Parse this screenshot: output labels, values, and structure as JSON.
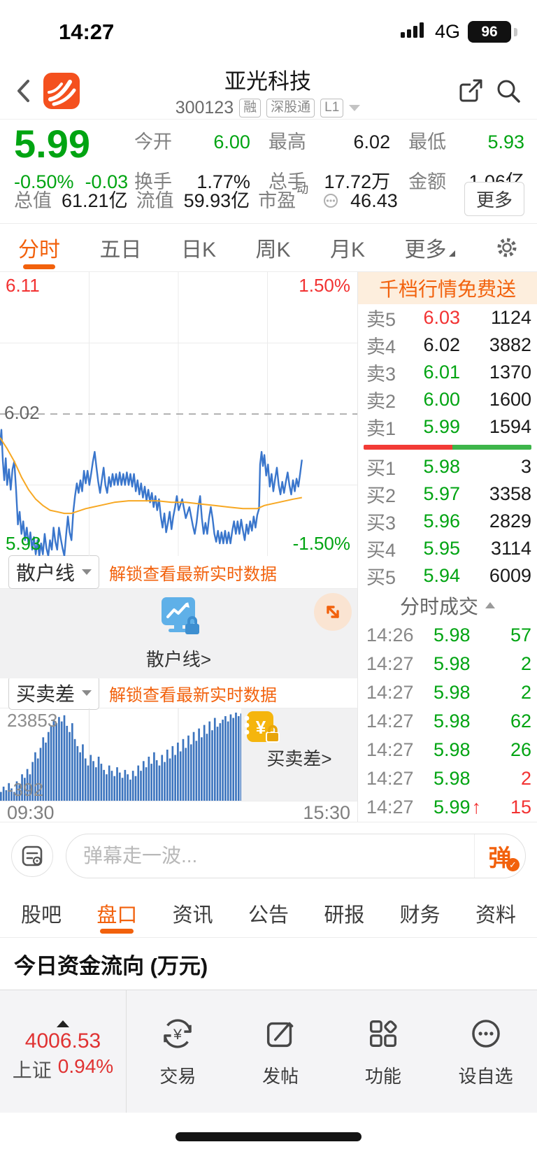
{
  "colors": {
    "up_red": "#f23232",
    "down_green": "#00a412",
    "accent_orange": "#f2610c",
    "line_blue": "#3a76cc",
    "avg_yellow": "#f7a823",
    "bar_blue": "#3c74be"
  },
  "status_bar": {
    "time": "14:27",
    "network": "4G",
    "battery": "96"
  },
  "header": {
    "title": "亚光科技",
    "code": "300123",
    "badges": [
      "融",
      "深股通",
      "L1"
    ]
  },
  "quote": {
    "price": "5.99",
    "change_pct": "-0.50%",
    "change_abs": "-0.03",
    "stats": [
      {
        "label": "今开",
        "value": "6.00"
      },
      {
        "label": "最高",
        "value": "6.02"
      },
      {
        "label": "最低",
        "value": "5.93"
      },
      {
        "label": "换手",
        "value": "1.77%"
      },
      {
        "label": "总手",
        "value": "17.72万"
      },
      {
        "label": "金额",
        "value": "1.06亿"
      }
    ],
    "row3": [
      {
        "label": "总值",
        "value": "61.21亿"
      },
      {
        "label": "流值",
        "value": "59.93亿"
      },
      {
        "label": "市盈",
        "sup": "动",
        "value": "46.43"
      }
    ],
    "more_label": "更多"
  },
  "ktabs": {
    "items": [
      "分时",
      "五日",
      "日K",
      "周K",
      "月K",
      "更多"
    ],
    "active": "分时"
  },
  "chart_data": [
    {
      "type": "line",
      "name": "timeshare",
      "ylim": [
        5.93,
        6.11
      ],
      "prev_close": 6.02,
      "labels": {
        "top_left": "6.11",
        "top_right": "1.50%",
        "mid_left": "6.02",
        "bottom_left": "5.93",
        "bottom_right": "-1.50%"
      },
      "x_axis": [
        "09:30",
        "15:30"
      ],
      "grid": true,
      "series": [
        {
          "name": "price",
          "color": "#3a76cc",
          "points": [
            [
              0,
              6.0
            ],
            [
              0.004,
              6.01
            ],
            [
              0.008,
              5.99
            ],
            [
              0.012,
              5.978
            ],
            [
              0.016,
              5.992
            ],
            [
              0.02,
              5.975
            ],
            [
              0.025,
              5.985
            ],
            [
              0.03,
              5.972
            ],
            [
              0.035,
              5.985
            ],
            [
              0.04,
              5.99
            ],
            [
              0.045,
              5.972
            ],
            [
              0.05,
              5.95
            ],
            [
              0.055,
              5.958
            ],
            [
              0.06,
              5.944
            ],
            [
              0.065,
              5.952
            ],
            [
              0.07,
              5.94
            ],
            [
              0.075,
              5.948
            ],
            [
              0.08,
              5.937
            ],
            [
              0.085,
              5.945
            ],
            [
              0.09,
              5.934
            ],
            [
              0.095,
              5.942
            ],
            [
              0.1,
              5.931
            ],
            [
              0.105,
              5.94
            ],
            [
              0.11,
              5.93
            ],
            [
              0.115,
              5.938
            ],
            [
              0.12,
              5.931
            ],
            [
              0.125,
              5.944
            ],
            [
              0.13,
              5.935
            ],
            [
              0.135,
              5.93
            ],
            [
              0.14,
              5.94
            ],
            [
              0.145,
              5.934
            ],
            [
              0.15,
              5.948
            ],
            [
              0.155,
              5.939
            ],
            [
              0.16,
              5.934
            ],
            [
              0.165,
              5.948
            ],
            [
              0.17,
              5.941
            ],
            [
              0.175,
              5.935
            ],
            [
              0.18,
              5.93
            ],
            [
              0.185,
              5.943
            ],
            [
              0.19,
              5.955
            ],
            [
              0.195,
              5.945
            ],
            [
              0.2,
              5.94
            ],
            [
              0.205,
              5.958
            ],
            [
              0.21,
              5.968
            ],
            [
              0.215,
              5.976
            ],
            [
              0.22,
              5.97
            ],
            [
              0.225,
              5.978
            ],
            [
              0.23,
              5.971
            ],
            [
              0.235,
              5.984
            ],
            [
              0.24,
              5.976
            ],
            [
              0.245,
              5.984
            ],
            [
              0.25,
              5.975
            ],
            [
              0.255,
              5.982
            ],
            [
              0.26,
              5.99
            ],
            [
              0.265,
              5.996
            ],
            [
              0.27,
              5.986
            ],
            [
              0.275,
              5.977
            ],
            [
              0.28,
              5.97
            ],
            [
              0.285,
              5.978
            ],
            [
              0.29,
              5.986
            ],
            [
              0.295,
              5.975
            ],
            [
              0.3,
              5.97
            ],
            [
              0.305,
              5.98
            ],
            [
              0.31,
              5.974
            ],
            [
              0.315,
              5.982
            ],
            [
              0.32,
              5.975
            ],
            [
              0.325,
              5.982
            ],
            [
              0.33,
              5.975
            ],
            [
              0.335,
              5.983
            ],
            [
              0.34,
              5.975
            ],
            [
              0.345,
              5.982
            ],
            [
              0.35,
              5.975
            ],
            [
              0.355,
              5.983
            ],
            [
              0.36,
              5.975
            ],
            [
              0.365,
              5.982
            ],
            [
              0.37,
              5.974
            ],
            [
              0.375,
              5.982
            ],
            [
              0.38,
              5.971
            ],
            [
              0.385,
              5.978
            ],
            [
              0.39,
              5.969
            ],
            [
              0.395,
              5.976
            ],
            [
              0.4,
              5.967
            ],
            [
              0.405,
              5.974
            ],
            [
              0.41,
              5.965
            ],
            [
              0.415,
              5.972
            ],
            [
              0.42,
              5.964
            ],
            [
              0.425,
              5.97
            ],
            [
              0.43,
              5.961
            ],
            [
              0.435,
              5.968
            ],
            [
              0.44,
              5.959
            ],
            [
              0.445,
              5.966
            ],
            [
              0.45,
              5.955
            ],
            [
              0.455,
              5.948
            ],
            [
              0.46,
              5.957
            ],
            [
              0.465,
              5.945
            ],
            [
              0.47,
              5.951
            ],
            [
              0.475,
              5.958
            ],
            [
              0.48,
              5.947
            ],
            [
              0.485,
              5.955
            ],
            [
              0.49,
              5.961
            ],
            [
              0.495,
              5.968
            ],
            [
              0.5,
              5.959
            ],
            [
              0.51,
              5.966
            ],
            [
              0.52,
              5.954
            ],
            [
              0.53,
              5.961
            ],
            [
              0.54,
              5.949
            ],
            [
              0.545,
              5.944
            ],
            [
              0.55,
              5.951
            ],
            [
              0.555,
              5.961
            ],
            [
              0.56,
              5.968
            ],
            [
              0.565,
              5.954
            ],
            [
              0.57,
              5.944
            ],
            [
              0.575,
              5.951
            ],
            [
              0.58,
              5.944
            ],
            [
              0.585,
              5.954
            ],
            [
              0.59,
              5.961
            ],
            [
              0.595,
              5.954
            ],
            [
              0.6,
              5.944
            ],
            [
              0.605,
              5.939
            ],
            [
              0.61,
              5.946
            ],
            [
              0.615,
              5.938
            ],
            [
              0.62,
              5.945
            ],
            [
              0.625,
              5.938
            ],
            [
              0.63,
              5.946
            ],
            [
              0.635,
              5.938
            ],
            [
              0.64,
              5.945
            ],
            [
              0.645,
              5.938
            ],
            [
              0.65,
              5.946
            ],
            [
              0.655,
              5.952
            ],
            [
              0.66,
              5.944
            ],
            [
              0.665,
              5.952
            ],
            [
              0.67,
              5.944
            ],
            [
              0.675,
              5.953
            ],
            [
              0.68,
              5.946
            ],
            [
              0.685,
              5.94
            ],
            [
              0.69,
              5.95
            ],
            [
              0.695,
              5.944
            ],
            [
              0.7,
              5.952
            ],
            [
              0.705,
              5.946
            ],
            [
              0.71,
              5.955
            ],
            [
              0.715,
              5.948
            ],
            [
              0.72,
              5.956
            ],
            [
              0.725,
              5.96
            ],
            [
              0.728,
              5.988
            ],
            [
              0.732,
              5.996
            ],
            [
              0.736,
              5.987
            ],
            [
              0.74,
              5.994
            ],
            [
              0.745,
              5.981
            ],
            [
              0.75,
              5.988
            ],
            [
              0.755,
              5.974
            ],
            [
              0.76,
              5.982
            ],
            [
              0.765,
              5.971
            ],
            [
              0.77,
              5.979
            ],
            [
              0.775,
              5.986
            ],
            [
              0.78,
              5.975
            ],
            [
              0.785,
              5.969
            ],
            [
              0.79,
              5.977
            ],
            [
              0.795,
              5.97
            ],
            [
              0.8,
              5.977
            ],
            [
              0.805,
              5.983
            ],
            [
              0.81,
              5.975
            ],
            [
              0.815,
              5.969
            ],
            [
              0.82,
              5.978
            ],
            [
              0.825,
              5.971
            ],
            [
              0.83,
              5.979
            ],
            [
              0.835,
              5.974
            ],
            [
              0.84,
              5.982
            ],
            [
              0.845,
              5.991
            ]
          ]
        },
        {
          "name": "avg",
          "color": "#f7a823",
          "points": [
            [
              0,
              6.005
            ],
            [
              0.02,
              5.998
            ],
            [
              0.04,
              5.99
            ],
            [
              0.06,
              5.98
            ],
            [
              0.08,
              5.972
            ],
            [
              0.1,
              5.966
            ],
            [
              0.12,
              5.962
            ],
            [
              0.14,
              5.959
            ],
            [
              0.16,
              5.958
            ],
            [
              0.18,
              5.957
            ],
            [
              0.2,
              5.957
            ],
            [
              0.24,
              5.96
            ],
            [
              0.28,
              5.962
            ],
            [
              0.32,
              5.964
            ],
            [
              0.36,
              5.965
            ],
            [
              0.4,
              5.965
            ],
            [
              0.44,
              5.965
            ],
            [
              0.48,
              5.964
            ],
            [
              0.52,
              5.964
            ],
            [
              0.56,
              5.963
            ],
            [
              0.6,
              5.962
            ],
            [
              0.64,
              5.961
            ],
            [
              0.68,
              5.96
            ],
            [
              0.72,
              5.96
            ],
            [
              0.74,
              5.962
            ],
            [
              0.78,
              5.964
            ],
            [
              0.82,
              5.966
            ],
            [
              0.845,
              5.967
            ]
          ]
        }
      ]
    },
    {
      "type": "bar",
      "name": "bid-ask-diff",
      "max_label": "23853",
      "min_label": "-392",
      "color": "#3c74be",
      "x_extent": 0.68,
      "values": [
        0.1,
        0.16,
        0.12,
        0.2,
        0.14,
        0.1,
        0.22,
        0.18,
        0.3,
        0.26,
        0.36,
        0.3,
        0.44,
        0.55,
        0.48,
        0.6,
        0.72,
        0.66,
        0.78,
        0.85,
        0.92,
        0.88,
        0.95,
        0.9,
        0.97,
        0.85,
        0.78,
        0.88,
        0.7,
        0.62,
        0.55,
        0.64,
        0.48,
        0.4,
        0.52,
        0.45,
        0.38,
        0.5,
        0.42,
        0.35,
        0.3,
        0.4,
        0.34,
        0.28,
        0.38,
        0.32,
        0.26,
        0.35,
        0.3,
        0.24,
        0.34,
        0.28,
        0.4,
        0.34,
        0.45,
        0.38,
        0.5,
        0.42,
        0.55,
        0.46,
        0.4,
        0.52,
        0.44,
        0.58,
        0.48,
        0.62,
        0.52,
        0.66,
        0.56,
        0.7,
        0.6,
        0.74,
        0.64,
        0.78,
        0.68,
        0.82,
        0.72,
        0.86,
        0.76,
        0.9,
        0.8,
        0.94,
        0.84,
        0.88,
        0.92,
        0.96,
        0.9,
        0.98,
        0.94,
        1.0,
        0.96,
        0.99
      ]
    }
  ],
  "order_book": {
    "banner": "千档行情免费送",
    "asks": [
      [
        "卖5",
        "6.03",
        "1124"
      ],
      [
        "卖4",
        "6.02",
        "3882"
      ],
      [
        "卖3",
        "6.01",
        "1370"
      ],
      [
        "卖2",
        "6.00",
        "1600"
      ],
      [
        "卖1",
        "5.99",
        "1594"
      ]
    ],
    "bids": [
      [
        "买1",
        "5.98",
        "3"
      ],
      [
        "买2",
        "5.97",
        "3358"
      ],
      [
        "买3",
        "5.96",
        "2829"
      ],
      [
        "买4",
        "5.95",
        "3114"
      ],
      [
        "买5",
        "5.94",
        "6009"
      ]
    ],
    "ratio_red_pct": 53,
    "ticks_title": "分时成交",
    "ticks": [
      [
        "14:26",
        "5.98",
        "57"
      ],
      [
        "14:27",
        "5.98",
        "2"
      ],
      [
        "14:27",
        "5.98",
        "2"
      ],
      [
        "14:27",
        "5.98",
        "62"
      ],
      [
        "14:27",
        "5.98",
        "26"
      ],
      [
        "14:27",
        "5.98",
        "2"
      ],
      [
        "14:27",
        "5.99",
        "15"
      ]
    ],
    "last_tick_arrow": "↑"
  },
  "panels": {
    "retail": {
      "dropdown": "散户线",
      "unlock": "解锁查看最新实时数据",
      "cta": "散户线>"
    },
    "diff": {
      "dropdown": "买卖差",
      "unlock": "解锁查看最新实时数据",
      "cta": "买卖差>"
    }
  },
  "time_axis": {
    "start": "09:30",
    "end": "15:30"
  },
  "danmaku": {
    "placeholder": "弹幕走一波...",
    "send": "弹"
  },
  "btabs": {
    "items": [
      "股吧",
      "盘口",
      "资讯",
      "公告",
      "研报",
      "财务",
      "资料"
    ],
    "active": "盘口"
  },
  "flow_section": {
    "title": "今日资金流向 (万元)"
  },
  "bottom_nav": {
    "index_value": "4006.53",
    "index_name": "上证",
    "index_pct": "0.94%",
    "items": [
      "交易",
      "发帖",
      "功能",
      "设自选"
    ]
  }
}
